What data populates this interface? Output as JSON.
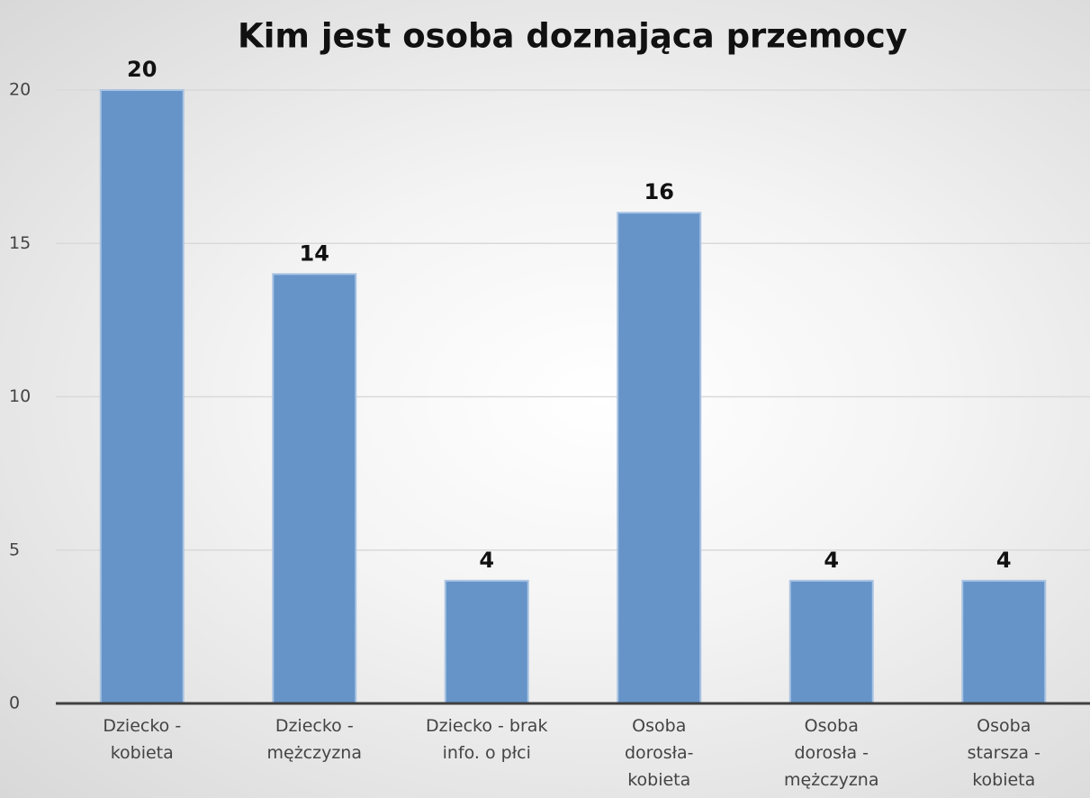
{
  "chart_data": {
    "type": "bar",
    "title": "Kim jest osoba doznająca przemocy",
    "categories": [
      "Dziecko -\nkobieta",
      "Dziecko -\nmężczyzna",
      "Dziecko - brak\ninfo. o płci",
      "Osoba\ndorosła-\nkobieta",
      "Osoba\ndorosła -\nmężczyzna",
      "Osoba\nstarsza -\nkobieta"
    ],
    "values": [
      20,
      14,
      4,
      16,
      4,
      4
    ],
    "color": "#6694c8",
    "ylim": [
      0,
      20
    ],
    "yticks": [
      0,
      5,
      10,
      15,
      20
    ],
    "grid": true
  }
}
